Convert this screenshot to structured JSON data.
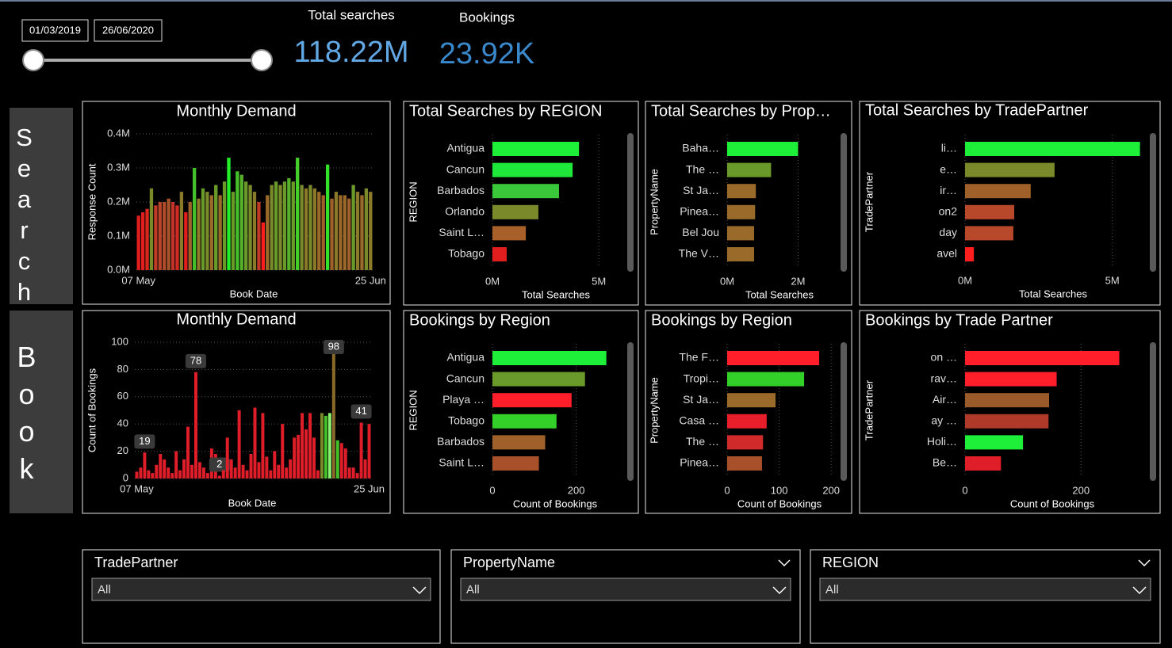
{
  "slicer": {
    "start": "01/03/2019",
    "end": "26/06/2020"
  },
  "kpis": [
    {
      "label": "Total searches",
      "value": "118.22M"
    },
    {
      "label": "Bookings",
      "value": "23.92K"
    }
  ],
  "side_labels": [
    "Search",
    "Book"
  ],
  "chart_data": [
    {
      "type": "bar",
      "title": "Monthly Demand",
      "xlabel": "Book Date",
      "ylabel": "Response Count",
      "categories": [
        "07 May",
        null,
        null,
        null,
        null,
        null,
        null,
        null,
        null,
        null,
        null,
        null,
        null,
        null,
        null,
        null,
        null,
        null,
        null,
        null,
        null,
        null,
        null,
        null,
        null,
        null,
        null,
        null,
        null,
        null,
        null,
        null,
        null,
        null,
        null,
        null,
        null,
        null,
        null,
        null,
        null,
        null,
        null,
        null,
        null,
        null,
        null,
        null,
        null,
        null,
        null,
        null,
        null,
        null,
        "25 Jun"
      ],
      "values": [
        0.16,
        0.17,
        0.18,
        0.24,
        0.19,
        0.2,
        0.2,
        0.21,
        0.2,
        0.19,
        0.23,
        0.17,
        0.2,
        0.3,
        0.21,
        0.24,
        0.23,
        0.22,
        0.25,
        0.22,
        0.26,
        0.33,
        0.23,
        0.29,
        0.28,
        0.26,
        0.25,
        0.23,
        0.2,
        0.14,
        0.22,
        0.25,
        0.26,
        0.25,
        0.26,
        0.27,
        0.26,
        0.33,
        0.25,
        0.24,
        0.25,
        0.24,
        0.23,
        0.22,
        0.31,
        0.21,
        0.23,
        0.22,
        0.22,
        0.21,
        0.25,
        0.23,
        0.22,
        0.24,
        0.23
      ],
      "colors": [
        "#e01e1e",
        "#e01e1e",
        "#d8281e",
        "#7a8a2a",
        "#c03a28",
        "#b8442a",
        "#b04c2a",
        "#a8542a",
        "#c0342a",
        "#d02a22",
        "#8a7a2a",
        "#e01e1e",
        "#a0602a",
        "#44c02a",
        "#8a7a2a",
        "#6a9a2a",
        "#7a8a2a",
        "#9a6a2a",
        "#6a9a2a",
        "#9a6a2a",
        "#6a9a2a",
        "#22ee2a",
        "#6a9a2a",
        "#44c02a",
        "#55b02a",
        "#6a9a2a",
        "#7a8a2a",
        "#8a7a2a",
        "#c03a28",
        "#ff1e1e",
        "#9a6a2a",
        "#7a8a2a",
        "#6a9a2a",
        "#7a8a2a",
        "#6a9a2a",
        "#55b02a",
        "#6a9a2a",
        "#44d02a",
        "#7a8a2a",
        "#8a7a2a",
        "#7a8a2a",
        "#8a7a2a",
        "#9a6a2a",
        "#a0602a",
        "#33e02a",
        "#a0602a",
        "#8a7a2a",
        "#9a6a2a",
        "#9a6a2a",
        "#a0602a",
        "#6a9a2a",
        "#8a7a2a",
        "#9a6a2a",
        "#7a8a2a",
        "#8a7a2a"
      ],
      "ylim": [
        0,
        0.4
      ],
      "yticks": [
        {
          "value": 0,
          "label": "0.0M"
        },
        {
          "value": 0.1,
          "label": "0.1M"
        },
        {
          "value": 0.2,
          "label": "0.2M"
        },
        {
          "value": 0.3,
          "label": "0.3M"
        },
        {
          "value": 0.4,
          "label": "0.4M"
        }
      ],
      "grid": true
    },
    {
      "type": "bar",
      "title": "Monthly Demand",
      "xlabel": "Book Date",
      "ylabel": "Count of Bookings",
      "categories": [
        "07 May",
        null,
        null,
        null,
        null,
        null,
        null,
        null,
        null,
        null,
        null,
        null,
        null,
        null,
        null,
        null,
        null,
        null,
        null,
        null,
        null,
        null,
        null,
        null,
        null,
        null,
        null,
        null,
        null,
        null,
        null,
        null,
        null,
        null,
        null,
        null,
        null,
        null,
        null,
        null,
        null,
        null,
        null,
        null,
        null,
        null,
        null,
        null,
        null,
        null,
        null,
        null,
        null,
        null,
        null,
        null,
        null,
        null,
        null,
        "25 Jun"
      ],
      "values": [
        5,
        8,
        19,
        6,
        4,
        10,
        18,
        14,
        8,
        4,
        20,
        6,
        14,
        38,
        10,
        78,
        12,
        8,
        4,
        22,
        18,
        2,
        6,
        30,
        14,
        8,
        50,
        10,
        6,
        18,
        52,
        12,
        48,
        16,
        6,
        20,
        10,
        40,
        8,
        14,
        30,
        32,
        48,
        36,
        48,
        30,
        6,
        48,
        46,
        48,
        98,
        28,
        26,
        22,
        8,
        8,
        4,
        41,
        14,
        40
      ],
      "value_labels": [
        null,
        null,
        "19",
        null,
        null,
        null,
        null,
        null,
        null,
        null,
        null,
        null,
        null,
        null,
        null,
        "78",
        null,
        null,
        null,
        null,
        null,
        "2",
        null,
        null,
        null,
        null,
        null,
        null,
        null,
        null,
        null,
        null,
        null,
        null,
        null,
        null,
        null,
        null,
        null,
        null,
        null,
        null,
        null,
        null,
        null,
        null,
        null,
        null,
        null,
        null,
        "98",
        null,
        null,
        null,
        null,
        null,
        null,
        "41",
        null,
        null
      ],
      "colors": [
        "#e01e2a",
        "#e01e2a",
        "#e01e2a",
        "#e01e2a",
        "#e01e2a",
        "#e01e2a",
        "#e01e2a",
        "#e01e2a",
        "#e01e2a",
        "#e01e2a",
        "#e01e2a",
        "#e01e2a",
        "#e01e2a",
        "#e01e2a",
        "#e01e2a",
        "#e01e2a",
        "#e01e2a",
        "#e01e2a",
        "#e01e2a",
        "#e01e2a",
        "#e01e2a",
        "#e01e2a",
        "#e01e2a",
        "#e01e2a",
        "#e01e2a",
        "#e01e2a",
        "#e01e2a",
        "#e01e2a",
        "#e01e2a",
        "#e01e2a",
        "#e01e2a",
        "#e01e2a",
        "#e01e2a",
        "#e01e2a",
        "#e01e2a",
        "#e01e2a",
        "#e01e2a",
        "#e01e2a",
        "#e01e2a",
        "#e01e2a",
        "#e01e2a",
        "#e01e2a",
        "#e01e2a",
        "#e01e2a",
        "#e01e2a",
        "#e01e2a",
        "#e01e2a",
        "#7a8a2a",
        "#44c02a",
        "#8af070",
        "#8a6a2a",
        "#44c02a",
        "#e01e2a",
        "#e01e2a",
        "#e01e2a",
        "#e01e2a",
        "#e01e2a",
        "#e01e2a",
        "#e01e2a",
        "#e01e2a"
      ],
      "ylim": [
        0,
        100
      ],
      "yticks": [
        0,
        20,
        40,
        60,
        80,
        100
      ],
      "grid": true
    },
    {
      "type": "hbar",
      "title": "Total Searches by REGION",
      "xlabel": "Total Searches",
      "ylabel": "REGION",
      "categories": [
        "Antigua",
        "Cancun",
        "Barbados",
        "Orlando",
        "Saint L…",
        "Tobago"
      ],
      "values": [
        4.07,
        3.77,
        3.13,
        2.16,
        1.57,
        0.67
      ],
      "colors": [
        "#1ef03a",
        "#1ee83a",
        "#3ac83a",
        "#7a8a2a",
        "#a8602a",
        "#e01e1e"
      ],
      "xlim": [
        0,
        6.3
      ],
      "xticks": [
        {
          "value": 0,
          "label": "0M"
        },
        {
          "value": 5,
          "label": "5M"
        }
      ],
      "grid": true
    },
    {
      "type": "hbar",
      "title": "Total Searches by Prop…",
      "xlabel": "Total Searches",
      "ylabel": "PropertyName",
      "categories": [
        "Baha…",
        "The …",
        "St Ja…",
        "Pinea…",
        "Bel Jou",
        "The V…"
      ],
      "values": [
        2.0,
        1.24,
        0.81,
        0.79,
        0.76,
        0.76
      ],
      "colors": [
        "#1ef03a",
        "#6a9a2a",
        "#9a6a2a",
        "#9a6a2a",
        "#9a6a2a",
        "#9a6a2a"
      ],
      "xlim": [
        0,
        3.2
      ],
      "xticks": [
        {
          "value": 0,
          "label": "0M"
        },
        {
          "value": 2,
          "label": "2M"
        }
      ],
      "grid": true
    },
    {
      "type": "hbar",
      "title": "Total Searches by TradePartner",
      "xlabel": "Total Searches",
      "ylabel": "TradePartner",
      "categories": [
        "li…",
        "e…",
        "ir…",
        "on2",
        "day",
        "avel"
      ],
      "values": [
        5.94,
        3.04,
        2.23,
        1.67,
        1.64,
        0.3
      ],
      "colors": [
        "#1ef03a",
        "#7a8a2a",
        "#a0602a",
        "#b8482a",
        "#b8482a",
        "#ff1e1e"
      ],
      "xlim": [
        0,
        6.3
      ],
      "xticks": [
        {
          "value": 0,
          "label": "0M"
        },
        {
          "value": 5,
          "label": "5M"
        }
      ],
      "grid": true
    },
    {
      "type": "hbar",
      "title": "Bookings by Region",
      "xlabel": "Count of Bookings",
      "ylabel": "REGION",
      "categories": [
        "Antigua",
        "Cancun",
        "Playa …",
        "Tobago",
        "Barbados",
        "Saint L…"
      ],
      "values": [
        272,
        221,
        189,
        153,
        126,
        111
      ],
      "colors": [
        "#1ef03a",
        "#6a9a2a",
        "#ff1e2a",
        "#33d02a",
        "#a0602a",
        "#a8502a"
      ],
      "xlim": [
        0,
        320
      ],
      "xticks": [
        0,
        200
      ],
      "grid": true
    },
    {
      "type": "hbar",
      "title": "Bookings by Region",
      "xlabel": "Count of Bookings",
      "ylabel": "PropertyName",
      "categories": [
        "The F…",
        "Tropi…",
        "St Ja…",
        "Casa …",
        "The …",
        "Pinea…"
      ],
      "values": [
        177,
        148,
        93,
        76,
        69,
        67
      ],
      "colors": [
        "#ff1e2a",
        "#33d02a",
        "#9a6a2a",
        "#e81e2a",
        "#d02a2a",
        "#a8502a"
      ],
      "xlim": [
        0,
        218
      ],
      "xticks": [
        0,
        100,
        200
      ],
      "grid": true
    },
    {
      "type": "hbar",
      "title": "Bookings by Trade Partner",
      "xlabel": "Count of Bookings",
      "ylabel": "TradePartner",
      "categories": [
        "on …",
        "rav…",
        "Air…",
        "ay …",
        "Holi…",
        "Be…"
      ],
      "values": [
        266,
        158,
        145,
        144,
        100,
        62
      ],
      "colors": [
        "#ff1e2a",
        "#ff1e2a",
        "#9a5a2a",
        "#b03a2a",
        "#1ef03a",
        "#e01e2a"
      ],
      "xlim": [
        0,
        320
      ],
      "xticks": [
        0,
        200
      ],
      "grid": true
    }
  ],
  "filters": [
    {
      "label": "TradePartner",
      "value": "All"
    },
    {
      "label": "PropertyName",
      "value": "All"
    },
    {
      "label": "REGION",
      "value": "All"
    }
  ]
}
